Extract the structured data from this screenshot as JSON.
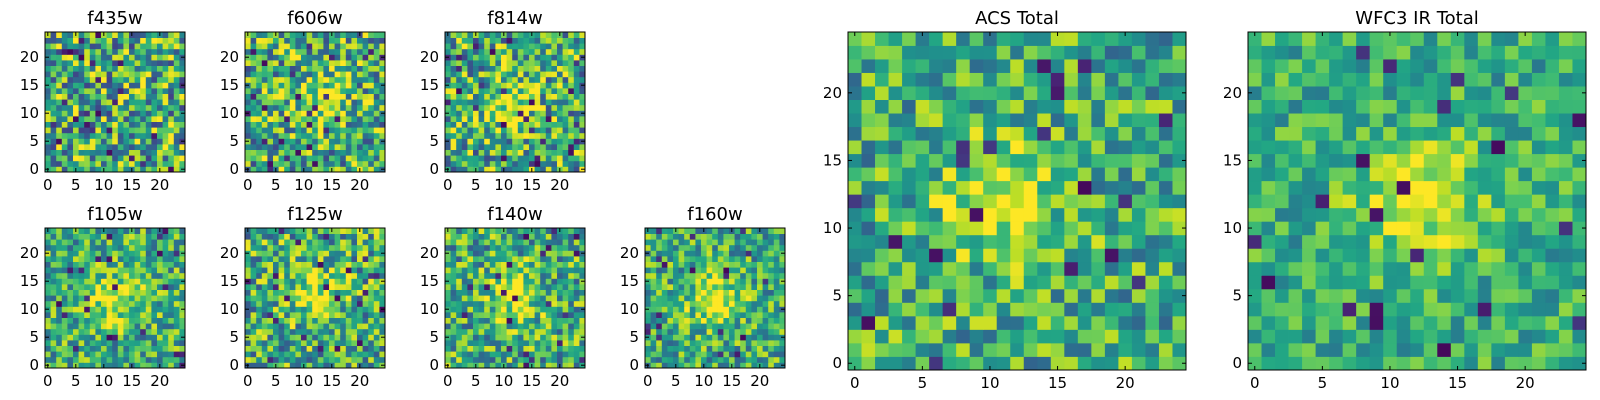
{
  "chart_data": [
    {
      "type": "heatmap",
      "title": "f435w",
      "xlim": [
        0,
        24
      ],
      "ylim": [
        0,
        24
      ],
      "xticks": [
        0,
        5,
        10,
        15,
        20
      ],
      "yticks": [
        0,
        5,
        10,
        15,
        20
      ],
      "colormap": "viridis",
      "source_center": null,
      "noise": 0.42,
      "seed": 11
    },
    {
      "type": "heatmap",
      "title": "f606w",
      "xlim": [
        0,
        24
      ],
      "ylim": [
        0,
        24
      ],
      "xticks": [
        0,
        5,
        10,
        15,
        20
      ],
      "yticks": [
        0,
        5,
        10,
        15,
        20
      ],
      "colormap": "viridis",
      "source_center": [
        13,
        12
      ],
      "noise": 0.4,
      "seed": 23
    },
    {
      "type": "heatmap",
      "title": "f814w",
      "xlim": [
        0,
        24
      ],
      "ylim": [
        0,
        24
      ],
      "xticks": [
        0,
        5,
        10,
        15,
        20
      ],
      "yticks": [
        0,
        5,
        10,
        15,
        20
      ],
      "colormap": "viridis",
      "source_center": [
        11,
        12
      ],
      "noise": 0.4,
      "seed": 37
    },
    {
      "type": "heatmap",
      "title": "f105w",
      "xlim": [
        0,
        24
      ],
      "ylim": [
        0,
        24
      ],
      "xticks": [
        0,
        5,
        10,
        15,
        20
      ],
      "yticks": [
        0,
        5,
        10,
        15,
        20
      ],
      "colormap": "viridis",
      "source_center": [
        12,
        12
      ],
      "noise": 0.32,
      "seed": 41
    },
    {
      "type": "heatmap",
      "title": "f125w",
      "xlim": [
        0,
        24
      ],
      "ylim": [
        0,
        24
      ],
      "xticks": [
        0,
        5,
        10,
        15,
        20
      ],
      "yticks": [
        0,
        5,
        10,
        15,
        20
      ],
      "colormap": "viridis",
      "source_center": [
        12,
        13
      ],
      "noise": 0.36,
      "seed": 53
    },
    {
      "type": "heatmap",
      "title": "f140w",
      "xlim": [
        0,
        24
      ],
      "ylim": [
        0,
        24
      ],
      "xticks": [
        0,
        5,
        10,
        15,
        20
      ],
      "yticks": [
        0,
        5,
        10,
        15,
        20
      ],
      "colormap": "viridis",
      "source_center": [
        12,
        12
      ],
      "noise": 0.34,
      "seed": 67
    },
    {
      "type": "heatmap",
      "title": "f160w",
      "xlim": [
        0,
        24
      ],
      "ylim": [
        0,
        24
      ],
      "xticks": [
        0,
        5,
        10,
        15,
        20
      ],
      "yticks": [
        0,
        5,
        10,
        15,
        20
      ],
      "colormap": "viridis",
      "source_center": [
        12,
        12
      ],
      "noise": 0.3,
      "seed": 79
    },
    {
      "type": "heatmap",
      "title": "ACS Total",
      "xlim": [
        0,
        24
      ],
      "ylim": [
        0,
        24
      ],
      "xticks": [
        0,
        5,
        10,
        15,
        20
      ],
      "yticks": [
        0,
        5,
        10,
        15,
        20
      ],
      "colormap": "viridis",
      "source_center": [
        11,
        12
      ],
      "noise": 0.3,
      "seed": 97
    },
    {
      "type": "heatmap",
      "title": "WFC3 IR Total",
      "xlim": [
        0,
        24
      ],
      "ylim": [
        0,
        24
      ],
      "xticks": [
        0,
        5,
        10,
        15,
        20
      ],
      "yticks": [
        0,
        5,
        10,
        15,
        20
      ],
      "colormap": "viridis",
      "source_center": [
        12,
        12
      ],
      "noise": 0.22,
      "seed": 113
    }
  ]
}
